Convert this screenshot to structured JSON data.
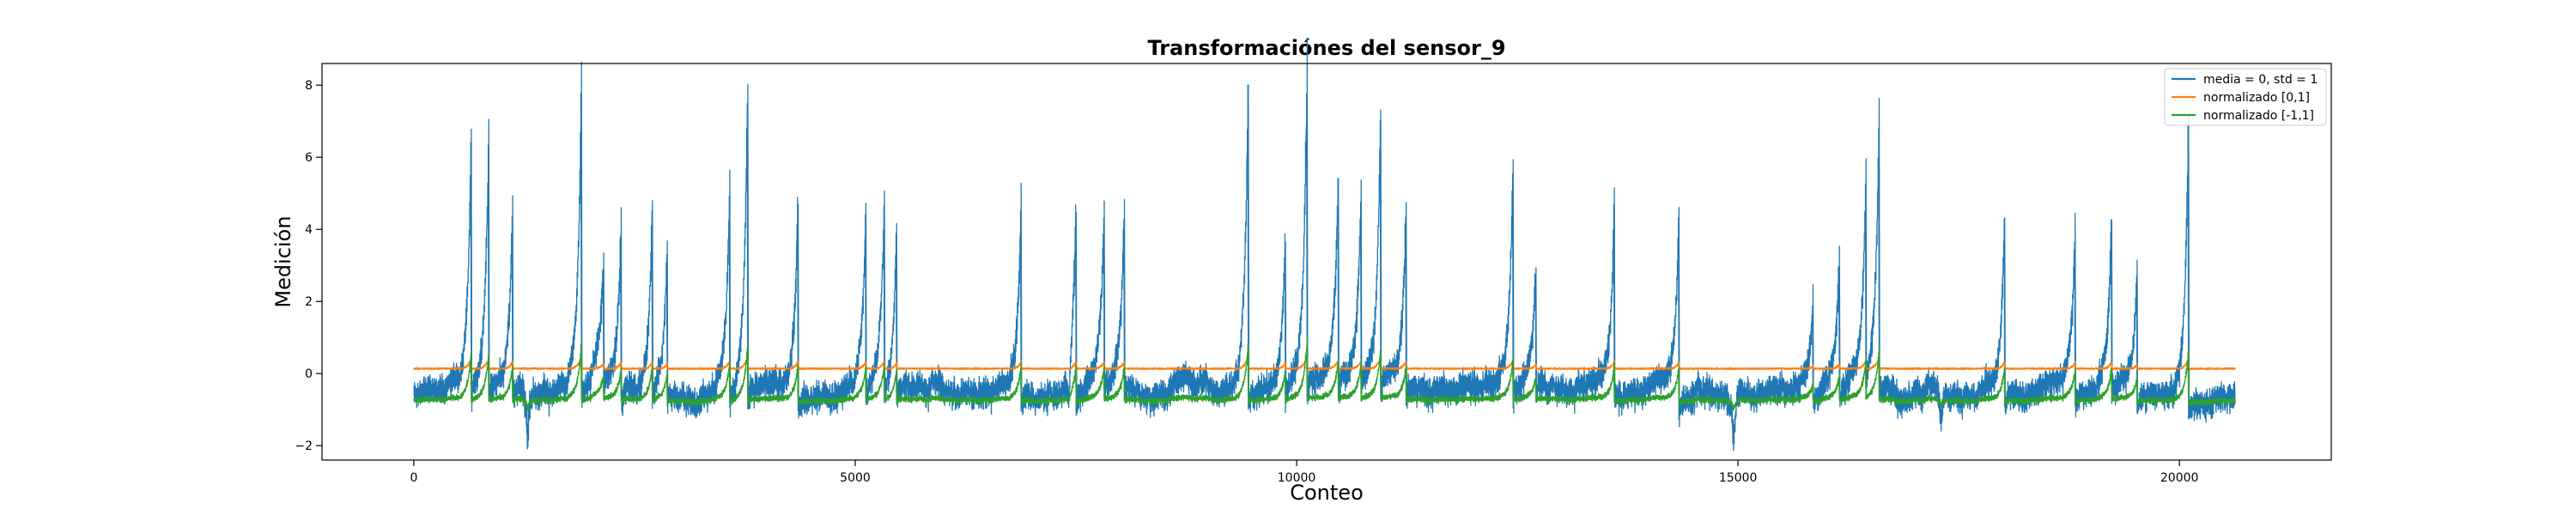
{
  "chart_data": {
    "type": "line",
    "title": "Transformaciónes del sensor_9",
    "xlabel": "Conteo",
    "ylabel": "Medición",
    "xlim": [
      -1040,
      21720
    ],
    "ylim": [
      -2.4,
      8.6
    ],
    "xticks": [
      0,
      5000,
      10000,
      15000,
      20000
    ],
    "yticks": [
      -2,
      0,
      2,
      4,
      6,
      8
    ],
    "n_points": 20630,
    "grid": false,
    "legend_position": "top-right",
    "series": [
      {
        "name": "media = 0, std = 1",
        "color": "#1f77b4",
        "baseline": -0.5,
        "noise": 0.35
      },
      {
        "name": "normalizado [0,1]",
        "color": "#ff7f0e",
        "baseline": 0.13,
        "noise": 0.04
      },
      {
        "name": "normalizado [-1,1]",
        "color": "#2ca02c",
        "baseline": -0.73,
        "noise": 0.07
      }
    ],
    "spikes": [
      {
        "x": 650,
        "peak": 6.0
      },
      {
        "x": 850,
        "peak": 6.2
      },
      {
        "x": 1120,
        "peak": 4.1
      },
      {
        "x": 1900,
        "peak": 7.9
      },
      {
        "x": 2150,
        "peak": 2.2
      },
      {
        "x": 2350,
        "peak": 4.1
      },
      {
        "x": 2700,
        "peak": 4.0
      },
      {
        "x": 2870,
        "peak": 3.0
      },
      {
        "x": 3580,
        "peak": 5.1
      },
      {
        "x": 3780,
        "peak": 7.2
      },
      {
        "x": 4350,
        "peak": 4.5
      },
      {
        "x": 5120,
        "peak": 3.9
      },
      {
        "x": 5330,
        "peak": 4.3
      },
      {
        "x": 5470,
        "peak": 3.5
      },
      {
        "x": 6880,
        "peak": 4.6
      },
      {
        "x": 7500,
        "peak": 4.2
      },
      {
        "x": 7820,
        "peak": 3.7
      },
      {
        "x": 8050,
        "peak": 4.1
      },
      {
        "x": 9450,
        "peak": 7.4
      },
      {
        "x": 9870,
        "peak": 3.1
      },
      {
        "x": 10120,
        "peak": 8.1
      },
      {
        "x": 10470,
        "peak": 4.6
      },
      {
        "x": 10730,
        "peak": 4.3
      },
      {
        "x": 10950,
        "peak": 6.2
      },
      {
        "x": 11240,
        "peak": 4.0
      },
      {
        "x": 12450,
        "peak": 5.0
      },
      {
        "x": 12710,
        "peak": 2.1
      },
      {
        "x": 13600,
        "peak": 4.4
      },
      {
        "x": 14330,
        "peak": 4.3
      },
      {
        "x": 15850,
        "peak": 1.6
      },
      {
        "x": 16150,
        "peak": 2.7
      },
      {
        "x": 16450,
        "peak": 4.7
      },
      {
        "x": 16600,
        "peak": 6.8
      },
      {
        "x": 18020,
        "peak": 3.9
      },
      {
        "x": 18820,
        "peak": 3.7
      },
      {
        "x": 19230,
        "peak": 3.5
      },
      {
        "x": 19520,
        "peak": 2.5
      },
      {
        "x": 20100,
        "peak": 6.5
      }
    ],
    "dips": [
      {
        "x": 1290,
        "value": -1.95
      },
      {
        "x": 7420,
        "value": -1.65
      },
      {
        "x": 14950,
        "value": -1.9
      },
      {
        "x": 17300,
        "value": -1.4
      }
    ]
  }
}
